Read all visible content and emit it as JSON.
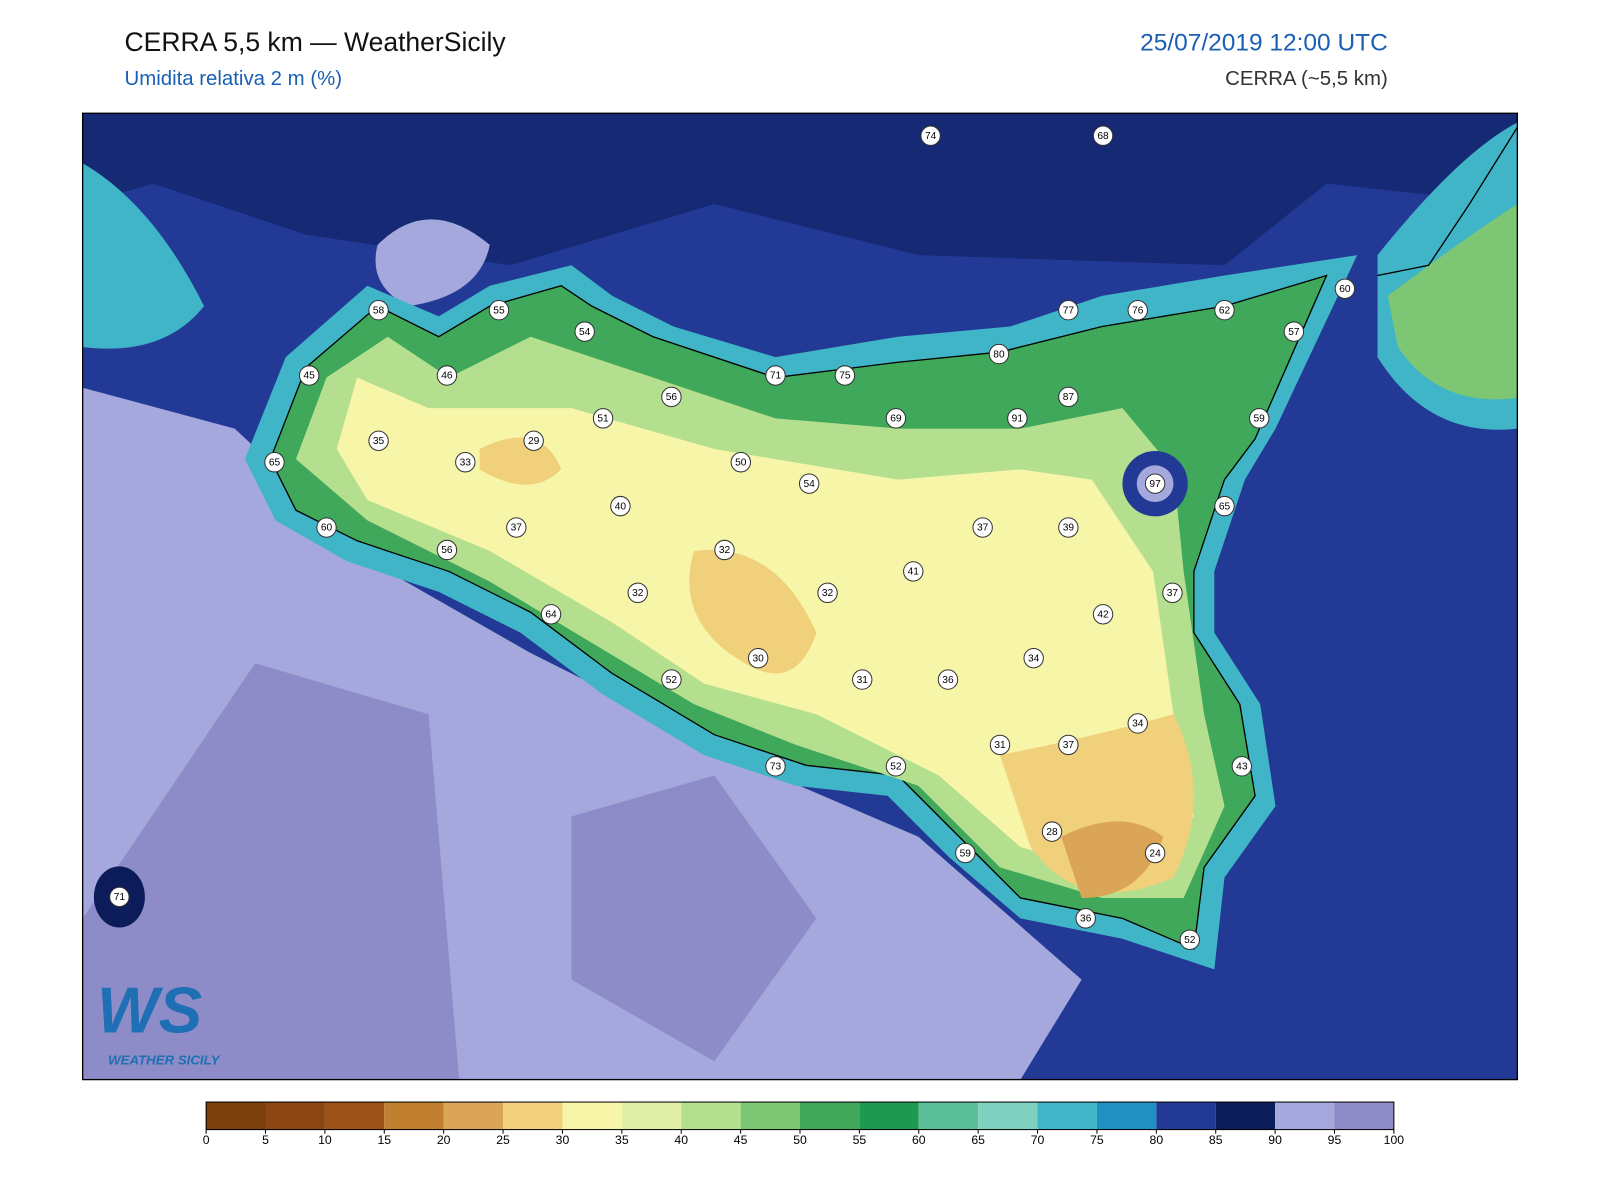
{
  "header": {
    "title": "CERRA 5,5 km — WeatherSicily",
    "subtitle": "Umidita relativa 2 m (%)",
    "datetime": "25/07/2019 12:00 UTC",
    "model": "CERRA (~5,5 km)"
  },
  "map": {
    "stations": [
      74,
      68,
      58,
      55,
      54,
      77,
      76,
      62,
      60,
      57,
      45,
      46,
      71,
      75,
      80,
      56,
      51,
      69,
      91,
      87,
      59,
      35,
      29,
      65,
      33,
      50,
      54,
      97,
      65,
      40,
      60,
      37,
      37,
      39,
      56,
      32,
      41,
      32,
      32,
      37,
      64,
      42,
      30,
      34,
      52,
      31,
      36,
      34,
      31,
      37,
      43,
      73,
      52,
      28,
      24,
      59,
      71,
      36,
      52
    ]
  },
  "logo": {
    "mark": "WS",
    "name": "WEATHER SICILY"
  },
  "colorbar": {
    "colors": [
      "#7b3f0c",
      "#8b4513",
      "#9c5318",
      "#c08030",
      "#dba558",
      "#f0d07a",
      "#f7f5a8",
      "#e0eea8",
      "#b4df8e",
      "#7dc774",
      "#3fa85a",
      "#1d9a50",
      "#5bbf9a",
      "#80d0c0",
      "#40b5c8",
      "#1f90c0",
      "#223a96",
      "#0c1c5a",
      "#a4a8dc",
      "#8e8cc8"
    ],
    "ticks": [
      0,
      5,
      10,
      15,
      20,
      25,
      30,
      35,
      40,
      45,
      50,
      55,
      60,
      65,
      70,
      75,
      80,
      85,
      90,
      95,
      100
    ]
  }
}
